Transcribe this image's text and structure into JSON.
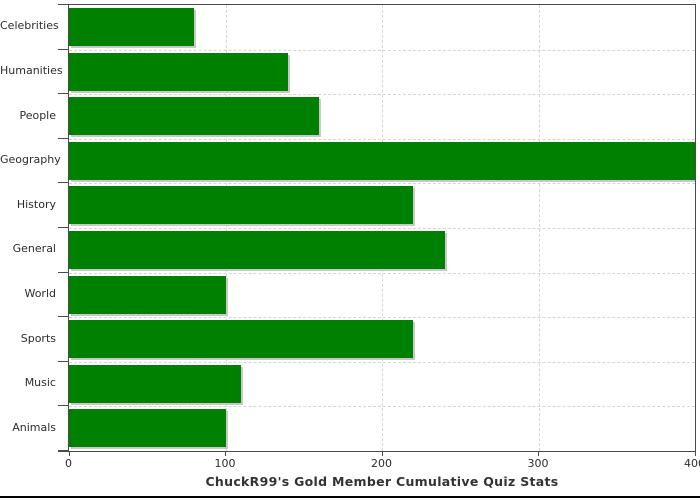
{
  "chart_data": {
    "type": "bar",
    "orientation": "horizontal",
    "title": "ChuckR99's Gold Member Cumulative Quiz Stats",
    "categories": [
      "Celebrities",
      "Humanities",
      "People",
      "Geography",
      "History",
      "General",
      "World",
      "Sports",
      "Music",
      "Animals"
    ],
    "values": [
      80,
      140,
      160,
      400,
      220,
      240,
      100,
      220,
      110,
      100
    ],
    "xlabel": "",
    "ylabel": "",
    "xlim": [
      0,
      400
    ],
    "x_ticks": [
      0,
      100,
      200,
      300,
      400
    ],
    "x_tick_labels": [
      "0",
      "100",
      "200",
      "300",
      "400"
    ],
    "grid": "dashed",
    "legend": "none",
    "colors": {
      "bar": "#008000",
      "bar_shadow": "#c8c8c8",
      "grid": "#d5d5d5",
      "frame": "#4a4a4a",
      "text": "#2d2d2d",
      "background": "#ffffff"
    }
  }
}
